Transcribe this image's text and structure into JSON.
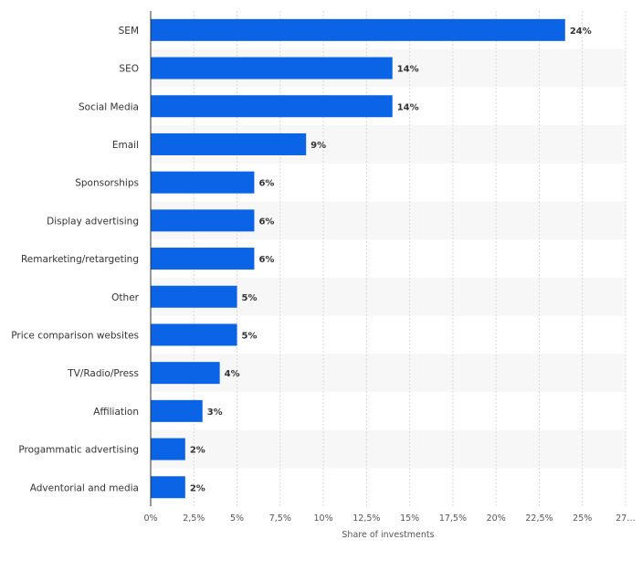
{
  "chart_data": {
    "type": "bar",
    "orientation": "horizontal",
    "categories": [
      "SEM",
      "SEO",
      "Social Media",
      "Email",
      "Sponsorships",
      "Display advertising",
      "Remarketing/retargeting",
      "Other",
      "Price comparison websites",
      "TV/Radio/Press",
      "Affiliation",
      "Progammatic advertising",
      "Adventorial and media"
    ],
    "values": [
      24,
      14,
      14,
      9,
      6,
      6,
      6,
      5,
      5,
      4,
      3,
      2,
      2
    ],
    "data_labels": [
      "24%",
      "14%",
      "14%",
      "9%",
      "6%",
      "6%",
      "6%",
      "5%",
      "5%",
      "4%",
      "3%",
      "2%",
      "2%"
    ],
    "x_ticks": [
      0,
      2.5,
      5,
      7.5,
      10,
      12.5,
      15,
      17.5,
      20,
      22.5,
      25,
      27.5
    ],
    "x_tick_labels": [
      "0%",
      "2,5%",
      "5%",
      "7,5%",
      "10%",
      "12,5%",
      "15%",
      "17,5%",
      "20%",
      "22,5%",
      "25%",
      "27…"
    ],
    "xlim": [
      0,
      27.5
    ],
    "xlabel": "Share of investments",
    "ylabel": "",
    "title": "",
    "grid": "vertical dashed",
    "bar_color": "#0b63e5",
    "band_color": "#f7f7f7"
  }
}
